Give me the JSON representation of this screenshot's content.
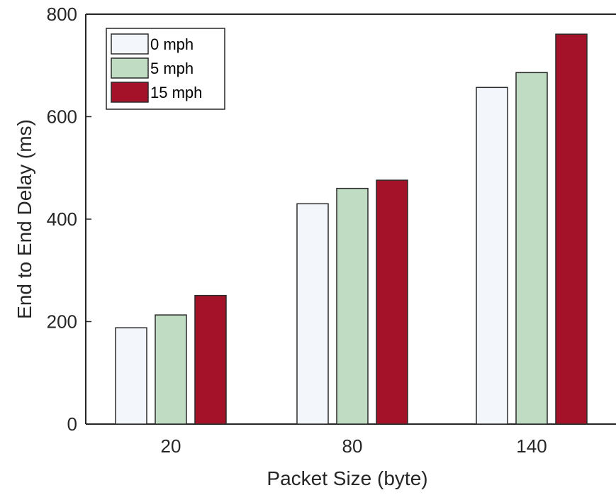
{
  "chart_data": {
    "type": "bar",
    "categories": [
      "20",
      "80",
      "140"
    ],
    "series": [
      {
        "name": "0 mph",
        "values": [
          188,
          430,
          657
        ],
        "color": "#f3f7fc"
      },
      {
        "name": "5 mph",
        "values": [
          213,
          460,
          686
        ],
        "color": "#c0dcc3"
      },
      {
        "name": "15 mph",
        "values": [
          251,
          476,
          761
        ],
        "color": "#a31228"
      }
    ],
    "xlabel": "Packet Size (byte)",
    "ylabel": "End to End Delay (ms)",
    "ylim": [
      0,
      800
    ],
    "yticks": [
      "0",
      "200",
      "400",
      "600",
      "800"
    ],
    "grid": false,
    "legend_position": "top-left",
    "bar_edge_color": "#2b2b2b",
    "axis_color": "#262626"
  }
}
